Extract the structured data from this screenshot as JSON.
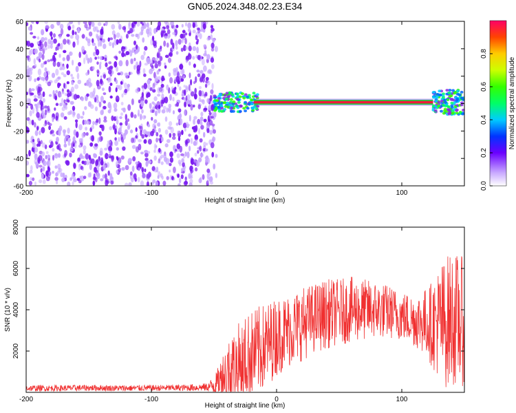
{
  "title": "GN05.2024.348.02.23.E34",
  "colors": {
    "noise": "#7a1cf0",
    "noise_light": "#c8a8ff",
    "snr_line": "#f03030",
    "axis": "#000000"
  },
  "chart_data": [
    {
      "type": "heatmap",
      "xlabel": "Height of straight line (km)",
      "ylabel": "Frequency (Hz)",
      "xlim": [
        -200,
        150
      ],
      "ylim": [
        -60,
        60
      ],
      "x_ticks": [
        -200,
        -100,
        0,
        100
      ],
      "y_ticks": [
        -60,
        -40,
        -20,
        0,
        20,
        40,
        60
      ],
      "colorbar": {
        "label": "Normalized spectral amplitude",
        "range": [
          0.0,
          1.0
        ],
        "ticks": [
          "0.0",
          "0.2",
          "0.4",
          "0.6",
          "0.8"
        ],
        "tick_values": [
          0.0,
          0.2,
          0.4,
          0.6,
          0.8
        ]
      },
      "features": {
        "noise_region_x": [
          -200,
          -48
        ],
        "signal_line_frequency_hz": 1,
        "signal_line_x": [
          -48,
          150
        ]
      }
    },
    {
      "type": "line",
      "xlabel": "Height of straight line (km)",
      "ylabel": "SNR (10 * v/v)",
      "xlim": [
        -200,
        150
      ],
      "ylim": [
        0,
        8000
      ],
      "x_ticks": [
        -200,
        -100,
        0,
        100
      ],
      "y_ticks": [
        2000,
        4000,
        6000,
        8000
      ],
      "series": [
        {
          "x": [
            -200,
            -175,
            -150,
            -125,
            -100,
            -75,
            -55,
            -48,
            -40,
            -30,
            -20,
            -10,
            0,
            10,
            20,
            30,
            40,
            50,
            60,
            70,
            80,
            90,
            100,
            110,
            120,
            125,
            130,
            135,
            140,
            145,
            150
          ],
          "y": [
            200,
            200,
            220,
            200,
            210,
            220,
            250,
            400,
            1000,
            1400,
            1800,
            2200,
            2700,
            3000,
            3300,
            3600,
            3800,
            3900,
            4000,
            4000,
            4000,
            3900,
            3700,
            3500,
            3400,
            3300,
            3400,
            3400,
            3600,
            3500,
            3400
          ],
          "y_band": [
            150,
            150,
            150,
            150,
            150,
            160,
            200,
            600,
            1500,
            2000,
            2200,
            2100,
            1900,
            1800,
            1800,
            1700,
            1700,
            1600,
            1600,
            1500,
            1400,
            1300,
            1200,
            1300,
            1700,
            2200,
            2800,
            3200,
            3300,
            3200,
            3100
          ]
        }
      ]
    }
  ]
}
